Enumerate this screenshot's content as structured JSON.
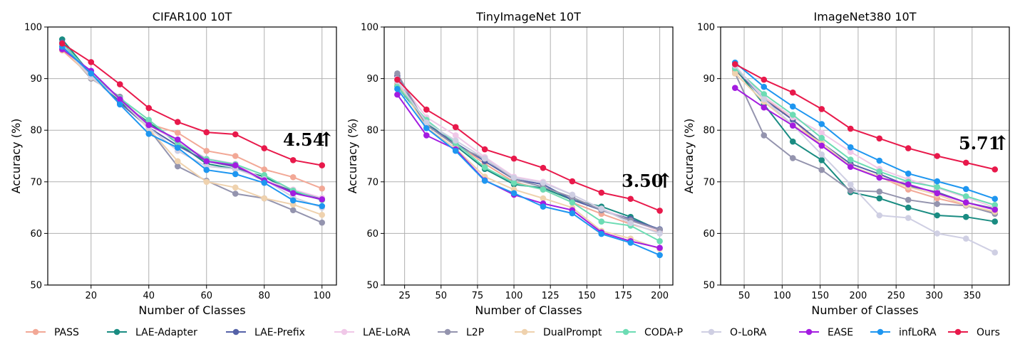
{
  "chart_data": [
    {
      "type": "line",
      "title": "CIFAR100 10T",
      "xlabel": "Number of Classes",
      "ylabel": "Accuracy (%)",
      "xlim": [
        5,
        105
      ],
      "ylim": [
        50,
        100
      ],
      "xticks": [
        20,
        40,
        60,
        80,
        100
      ],
      "yticks": [
        50,
        60,
        70,
        80,
        90,
        100
      ],
      "grid": true,
      "x": [
        10,
        20,
        30,
        40,
        50,
        60,
        70,
        80,
        90,
        100
      ],
      "series": [
        {
          "name": "PASS",
          "values": [
            95.5,
            90.5,
            86.0,
            81.2,
            79.5,
            76.0,
            75.0,
            72.4,
            70.9,
            68.7
          ]
        },
        {
          "name": "LAE-Adapter",
          "values": [
            97.6,
            90.8,
            85.5,
            81.5,
            77.5,
            73.5,
            72.5,
            71.0,
            68.0,
            66.5
          ]
        },
        {
          "name": "LAE-Prefix",
          "values": [
            97.0,
            90.6,
            85.3,
            80.5,
            77.0,
            74.0,
            72.9,
            70.2,
            68.2,
            66.8
          ]
        },
        {
          "name": "LAE-LoRA",
          "values": [
            96.0,
            90.5,
            86.3,
            81.0,
            77.8,
            74.5,
            73.5,
            70.4,
            68.5,
            66.9
          ]
        },
        {
          "name": "L2P",
          "values": [
            96.2,
            90.0,
            86.5,
            80.2,
            73.0,
            70.2,
            67.7,
            66.8,
            64.5,
            62.1
          ]
        },
        {
          "name": "DualPrompt",
          "values": [
            96.0,
            90.2,
            86.0,
            80.3,
            74.0,
            70.0,
            68.9,
            66.8,
            65.6,
            63.6
          ]
        },
        {
          "name": "CODA-P",
          "values": [
            96.8,
            91.0,
            86.2,
            82.0,
            77.5,
            74.4,
            73.4,
            71.3,
            68.3,
            66.5
          ]
        },
        {
          "name": "O-LoRA",
          "values": [
            96.5,
            90.3,
            86.0,
            80.5,
            76.0,
            73.0,
            72.5,
            70.5,
            67.0,
            65.0
          ]
        },
        {
          "name": "EASE",
          "values": [
            95.7,
            91.5,
            86.0,
            81.0,
            78.2,
            74.0,
            73.2,
            70.3,
            67.8,
            66.6
          ]
        },
        {
          "name": "infLoRA",
          "values": [
            96.2,
            91.0,
            85.0,
            79.3,
            76.6,
            72.3,
            71.5,
            69.8,
            66.4,
            65.3
          ]
        },
        {
          "name": "Ours",
          "values": [
            96.8,
            93.2,
            88.9,
            84.3,
            81.6,
            79.6,
            79.2,
            76.5,
            74.2,
            73.2
          ]
        }
      ],
      "annotation": {
        "text": "4.54",
        "arrow": "↑",
        "x": 100,
        "y": 79.5
      }
    },
    {
      "type": "line",
      "title": "TinyImageNet 10T",
      "xlabel": "Number of Classes",
      "ylabel": "Accuracy (%)",
      "xlim": [
        11,
        209
      ],
      "ylim": [
        50,
        100
      ],
      "xticks": [
        25,
        50,
        75,
        100,
        125,
        150,
        175,
        200
      ],
      "yticks": [
        50,
        60,
        70,
        80,
        90,
        100
      ],
      "grid": true,
      "x": [
        20,
        40,
        60,
        80,
        100,
        120,
        140,
        160,
        180,
        200
      ],
      "series": [
        {
          "name": "PASS",
          "values": [
            89.0,
            81.0,
            77.5,
            73.5,
            70.0,
            68.5,
            66.0,
            63.8,
            61.8,
            60.2
          ]
        },
        {
          "name": "LAE-Adapter",
          "values": [
            88.5,
            81.5,
            77.0,
            72.5,
            69.5,
            68.8,
            66.5,
            65.2,
            63.2,
            60.6
          ]
        },
        {
          "name": "LAE-Prefix",
          "values": [
            90.5,
            81.0,
            77.5,
            74.0,
            70.5,
            69.5,
            66.5,
            64.5,
            62.8,
            60.8
          ]
        },
        {
          "name": "LAE-LoRA",
          "values": [
            90.0,
            82.5,
            79.0,
            74.8,
            71.0,
            70.0,
            67.5,
            64.8,
            62.5,
            60.5
          ]
        },
        {
          "name": "L2P",
          "values": [
            91.0,
            81.0,
            77.0,
            74.5,
            70.5,
            69.0,
            67.0,
            64.5,
            62.5,
            60.7
          ]
        },
        {
          "name": "DualPrompt",
          "values": [
            89.5,
            80.5,
            76.5,
            71.0,
            68.5,
            66.8,
            65.0,
            60.5,
            59.0,
            57.0
          ]
        },
        {
          "name": "CODA-P",
          "values": [
            88.5,
            82.0,
            77.5,
            72.8,
            69.8,
            68.5,
            66.0,
            62.3,
            61.5,
            58.5
          ]
        },
        {
          "name": "O-LoRA",
          "values": [
            89.5,
            81.5,
            78.0,
            74.5,
            70.8,
            69.8,
            67.5,
            64.8,
            62.0,
            60.0
          ]
        },
        {
          "name": "EASE",
          "values": [
            86.9,
            79.0,
            76.3,
            70.3,
            67.5,
            65.8,
            64.5,
            60.2,
            58.5,
            57.2
          ]
        },
        {
          "name": "infLoRA",
          "values": [
            88.0,
            80.4,
            76.0,
            70.2,
            67.8,
            65.2,
            63.9,
            59.9,
            58.2,
            55.8
          ]
        },
        {
          "name": "Ours",
          "values": [
            89.8,
            84.0,
            80.6,
            76.3,
            74.5,
            72.7,
            70.1,
            67.9,
            66.7,
            64.4
          ]
        }
      ],
      "annotation": {
        "text": "3.50",
        "arrow": "↑",
        "x": 200,
        "y": 70.2
      }
    },
    {
      "type": "line",
      "title": "ImageNet380 10T",
      "xlabel": "Number of Classes",
      "ylabel": "Accuracy (%)",
      "xlim": [
        19,
        399
      ],
      "ylim": [
        50,
        100
      ],
      "xticks": [
        50,
        100,
        150,
        200,
        250,
        300,
        350
      ],
      "yticks": [
        50,
        60,
        70,
        80,
        90,
        100
      ],
      "grid": true,
      "x": [
        38,
        76,
        114,
        152,
        190,
        228,
        266,
        304,
        342,
        380
      ],
      "series": [
        {
          "name": "PASS",
          "values": [
            91.5,
            86.5,
            82.0,
            77.0,
            73.0,
            71.0,
            68.5,
            66.8,
            65.5,
            64.0
          ]
        },
        {
          "name": "LAE-Adapter",
          "values": [
            92.0,
            85.0,
            77.8,
            74.2,
            68.0,
            66.8,
            65.0,
            63.5,
            63.2,
            62.3
          ]
        },
        {
          "name": "LAE-Prefix",
          "values": [
            92.0,
            86.0,
            82.0,
            77.5,
            73.5,
            71.5,
            69.2,
            68.0,
            66.0,
            64.8
          ]
        },
        {
          "name": "LAE-LoRA",
          "values": [
            92.0,
            86.5,
            82.5,
            79.5,
            75.8,
            72.5,
            70.5,
            68.8,
            67.0,
            65.0
          ]
        },
        {
          "name": "L2P",
          "values": [
            91.0,
            79.0,
            74.6,
            72.3,
            68.3,
            68.1,
            66.5,
            65.7,
            65.4,
            63.8
          ]
        },
        {
          "name": "DualPrompt",
          "values": [
            91.0,
            85.5,
            81.0,
            77.5,
            73.0,
            71.0,
            69.0,
            67.5,
            65.5,
            64.2
          ]
        },
        {
          "name": "CODA-P",
          "values": [
            92.0,
            87.0,
            83.0,
            78.5,
            74.3,
            72.0,
            70.0,
            69.0,
            67.2,
            65.5
          ]
        },
        {
          "name": "O-LoRA",
          "values": [
            92.5,
            86.0,
            81.0,
            75.3,
            69.5,
            63.5,
            63.0,
            60.0,
            59.0,
            56.3
          ]
        },
        {
          "name": "EASE",
          "values": [
            88.2,
            84.4,
            80.9,
            77.0,
            72.9,
            70.8,
            69.5,
            67.8,
            66.0,
            64.6
          ]
        },
        {
          "name": "infLoRA",
          "values": [
            93.1,
            88.4,
            84.6,
            81.2,
            76.7,
            74.1,
            71.6,
            70.1,
            68.6,
            66.7
          ]
        },
        {
          "name": "Ours",
          "values": [
            92.8,
            89.8,
            87.3,
            84.1,
            80.3,
            78.4,
            76.5,
            75.0,
            73.7,
            72.4
          ]
        }
      ],
      "annotation": {
        "text": "5.71",
        "arrow": "↑",
        "x": 380,
        "y": 77.8
      }
    }
  ],
  "legend": {
    "placement": "bottom",
    "items": [
      {
        "name": "PASS",
        "color": "#f2a896"
      },
      {
        "name": "LAE-Adapter",
        "color": "#1a8c82"
      },
      {
        "name": "LAE-Prefix",
        "color": "#5562a8"
      },
      {
        "name": "LAE-LoRA",
        "color": "#f0c8e8"
      },
      {
        "name": "L2P",
        "color": "#9494ae"
      },
      {
        "name": "DualPrompt",
        "color": "#efd2ae"
      },
      {
        "name": "CODA-P",
        "color": "#6ddcb4"
      },
      {
        "name": "O-LoRA",
        "color": "#cfcfe3"
      },
      {
        "name": "EASE",
        "color": "#a31ce0"
      },
      {
        "name": "infLoRA",
        "color": "#1e96f0"
      },
      {
        "name": "Ours",
        "color": "#e8194b"
      }
    ]
  }
}
